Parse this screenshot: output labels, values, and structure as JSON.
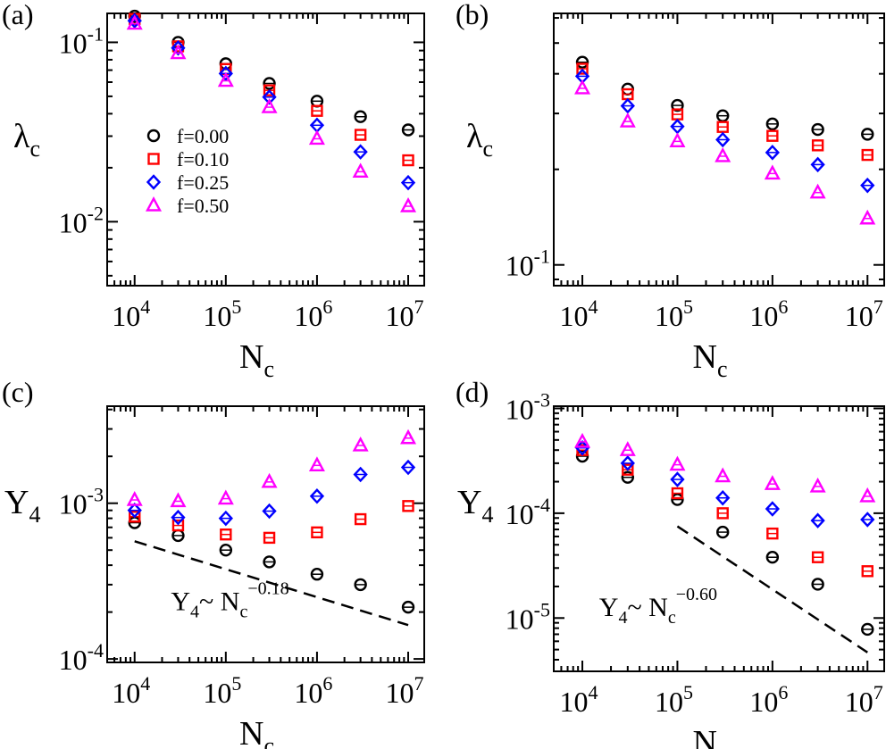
{
  "chart_data": [
    {
      "type": "scatter",
      "panel_label": "(a)",
      "xlabel_main": "N",
      "xlabel_sub": "c",
      "ylabel_main": "λ",
      "ylabel_sub": "c",
      "xscale": "log",
      "yscale": "log",
      "xlim": [
        5000,
        15000000
      ],
      "ylim": [
        0.0044,
        0.145
      ],
      "xticks": [
        {
          "v": 10000,
          "base": "10",
          "exp": "4"
        },
        {
          "v": 100000,
          "base": "10",
          "exp": "5"
        },
        {
          "v": 1000000,
          "base": "10",
          "exp": "6"
        },
        {
          "v": 10000000,
          "base": "10",
          "exp": "7"
        }
      ],
      "yticks": [
        {
          "v": 0.1,
          "base": "10",
          "exp": "-1"
        },
        {
          "v": 0.01,
          "base": "10",
          "exp": "-2"
        }
      ],
      "legend": {
        "position": "left-center",
        "entries": [
          "f=0.00",
          "f=0.10",
          "f=0.25",
          "f=0.50"
        ]
      },
      "x": [
        10000,
        30000,
        100000,
        300000,
        1000000,
        3000000,
        10000000
      ],
      "series": [
        {
          "name": "f=0.00",
          "marker": "circle",
          "color": "#000000",
          "values": [
            0.14,
            0.1,
            0.076,
            0.059,
            0.047,
            0.0385,
            0.0325
          ]
        },
        {
          "name": "f=0.10",
          "marker": "square",
          "color": "#ff0000",
          "values": [
            0.135,
            0.095,
            0.071,
            0.054,
            0.0415,
            0.0305,
            0.022
          ]
        },
        {
          "name": "f=0.25",
          "marker": "diamond",
          "color": "#0000ff",
          "values": [
            0.132,
            0.093,
            0.067,
            0.0495,
            0.0345,
            0.0245,
            0.0165
          ]
        },
        {
          "name": "f=0.50",
          "marker": "triangle",
          "color": "#ff00ff",
          "values": [
            0.127,
            0.087,
            0.061,
            0.0435,
            0.029,
            0.019,
            0.0122
          ]
        }
      ]
    },
    {
      "type": "scatter",
      "panel_label": "(b)",
      "xlabel_main": "N",
      "xlabel_sub": "c",
      "ylabel_main": "λ",
      "ylabel_sub": "c",
      "xscale": "log",
      "yscale": "log",
      "xlim": [
        5000,
        15000000
      ],
      "ylim": [
        0.086,
        0.62
      ],
      "xticks": [
        {
          "v": 10000,
          "base": "10",
          "exp": "4"
        },
        {
          "v": 100000,
          "base": "10",
          "exp": "5"
        },
        {
          "v": 1000000,
          "base": "10",
          "exp": "6"
        },
        {
          "v": 10000000,
          "base": "10",
          "exp": "7"
        }
      ],
      "yticks": [
        {
          "v": 0.1,
          "base": "10",
          "exp": "-1"
        }
      ],
      "x": [
        10000,
        30000,
        100000,
        300000,
        1000000,
        3000000,
        10000000
      ],
      "series": [
        {
          "name": "f=0.00",
          "marker": "circle",
          "color": "#000000",
          "values": [
            0.435,
            0.358,
            0.318,
            0.295,
            0.278,
            0.267,
            0.258
          ]
        },
        {
          "name": "f=0.10",
          "marker": "square",
          "color": "#ff0000",
          "values": [
            0.415,
            0.345,
            0.298,
            0.272,
            0.255,
            0.238,
            0.222
          ]
        },
        {
          "name": "f=0.25",
          "marker": "diamond",
          "color": "#0000ff",
          "values": [
            0.393,
            0.317,
            0.273,
            0.248,
            0.226,
            0.207,
            0.178
          ]
        },
        {
          "name": "f=0.50",
          "marker": "triangle",
          "color": "#ff00ff",
          "values": [
            0.36,
            0.283,
            0.245,
            0.22,
            0.194,
            0.169,
            0.14
          ]
        }
      ]
    },
    {
      "type": "scatter",
      "panel_label": "(c)",
      "xlabel_main": "N",
      "xlabel_sub": "c",
      "ylabel_main": "Y",
      "ylabel_sub": "4",
      "xscale": "log",
      "yscale": "log",
      "xlim": [
        5000,
        15000000
      ],
      "ylim": [
        9.5e-05,
        0.0042
      ],
      "xticks": [
        {
          "v": 10000,
          "base": "10",
          "exp": "4"
        },
        {
          "v": 100000,
          "base": "10",
          "exp": "5"
        },
        {
          "v": 1000000,
          "base": "10",
          "exp": "6"
        },
        {
          "v": 10000000,
          "base": "10",
          "exp": "7"
        }
      ],
      "yticks": [
        {
          "v": 0.001,
          "base": "10",
          "exp": "-3"
        },
        {
          "v": 0.0001,
          "base": "10",
          "exp": "-4"
        }
      ],
      "x": [
        10000,
        30000,
        100000,
        300000,
        1000000,
        3000000,
        10000000
      ],
      "series": [
        {
          "name": "f=0.00",
          "marker": "circle",
          "color": "#000000",
          "values": [
            0.00075,
            0.00062,
            0.0005,
            0.00042,
            0.00035,
            0.0003,
            0.000215
          ]
        },
        {
          "name": "f=0.10",
          "marker": "square",
          "color": "#ff0000",
          "values": [
            0.00082,
            0.00072,
            0.00063,
            0.0006,
            0.00065,
            0.00079,
            0.00096
          ]
        },
        {
          "name": "f=0.25",
          "marker": "diamond",
          "color": "#0000ff",
          "values": [
            0.0009,
            0.00081,
            0.0008,
            0.00089,
            0.00111,
            0.00153,
            0.0017
          ]
        },
        {
          "name": "f=0.50",
          "marker": "triangle",
          "color": "#ff00ff",
          "values": [
            0.00105,
            0.00103,
            0.00107,
            0.00137,
            0.00175,
            0.00235,
            0.00262
          ]
        }
      ],
      "guide_line": {
        "x": [
          10000,
          10000000
        ],
        "y": [
          0.00057,
          0.000165
        ]
      },
      "annotation": {
        "main": "Y",
        "sub": "4",
        "tilde": "~ N",
        "sub2": "c",
        "sup": "−0.18",
        "anchor_x": 25000,
        "anchor_y": 0.000205
      }
    },
    {
      "type": "scatter",
      "panel_label": "(d)",
      "xlabel_main": "N",
      "xlabel_sub": "c",
      "ylabel_main": "Y",
      "ylabel_sub": "4",
      "xscale": "log",
      "yscale": "log",
      "xlim": [
        5000,
        15000000
      ],
      "ylim": [
        3.1e-06,
        0.00105
      ],
      "xticks": [
        {
          "v": 10000,
          "base": "10",
          "exp": "4"
        },
        {
          "v": 100000,
          "base": "10",
          "exp": "5"
        },
        {
          "v": 1000000,
          "base": "10",
          "exp": "6"
        },
        {
          "v": 10000000,
          "base": "10",
          "exp": "7"
        }
      ],
      "yticks": [
        {
          "v": 0.001,
          "base": "10",
          "exp": "-3"
        },
        {
          "v": 0.0001,
          "base": "10",
          "exp": "-4"
        },
        {
          "v": 1e-05,
          "base": "10",
          "exp": "-5"
        }
      ],
      "x": [
        10000,
        30000,
        100000,
        300000,
        1000000,
        3000000,
        10000000
      ],
      "series": [
        {
          "name": "f=0.00",
          "marker": "circle",
          "color": "#000000",
          "values": [
            0.00035,
            0.00022,
            0.000135,
            6.6e-05,
            3.8e-05,
            2.1e-05,
            7.8e-06
          ]
        },
        {
          "name": "f=0.10",
          "marker": "square",
          "color": "#ff0000",
          "values": [
            0.0004,
            0.00026,
            0.000155,
            0.0001,
            6.4e-05,
            3.8e-05,
            2.8e-05
          ]
        },
        {
          "name": "f=0.25",
          "marker": "diamond",
          "color": "#0000ff",
          "values": [
            0.00042,
            0.0003,
            0.00021,
            0.00014,
            0.00011,
            8.5e-05,
            8.7e-05
          ]
        },
        {
          "name": "f=0.50",
          "marker": "triangle",
          "color": "#ff00ff",
          "values": [
            0.00048,
            0.0004,
            0.00029,
            0.000225,
            0.00019,
            0.00018,
            0.000145
          ]
        }
      ],
      "guide_line": {
        "x": [
          100000,
          10000000
        ],
        "y": [
          7.5e-05,
          4.7e-06
        ]
      },
      "annotation": {
        "main": "Y",
        "sub": "4",
        "tilde": "~ N",
        "sub2": "c",
        "sup": "−0.60",
        "anchor_x": 15000,
        "anchor_y": 1.05e-05
      }
    }
  ]
}
